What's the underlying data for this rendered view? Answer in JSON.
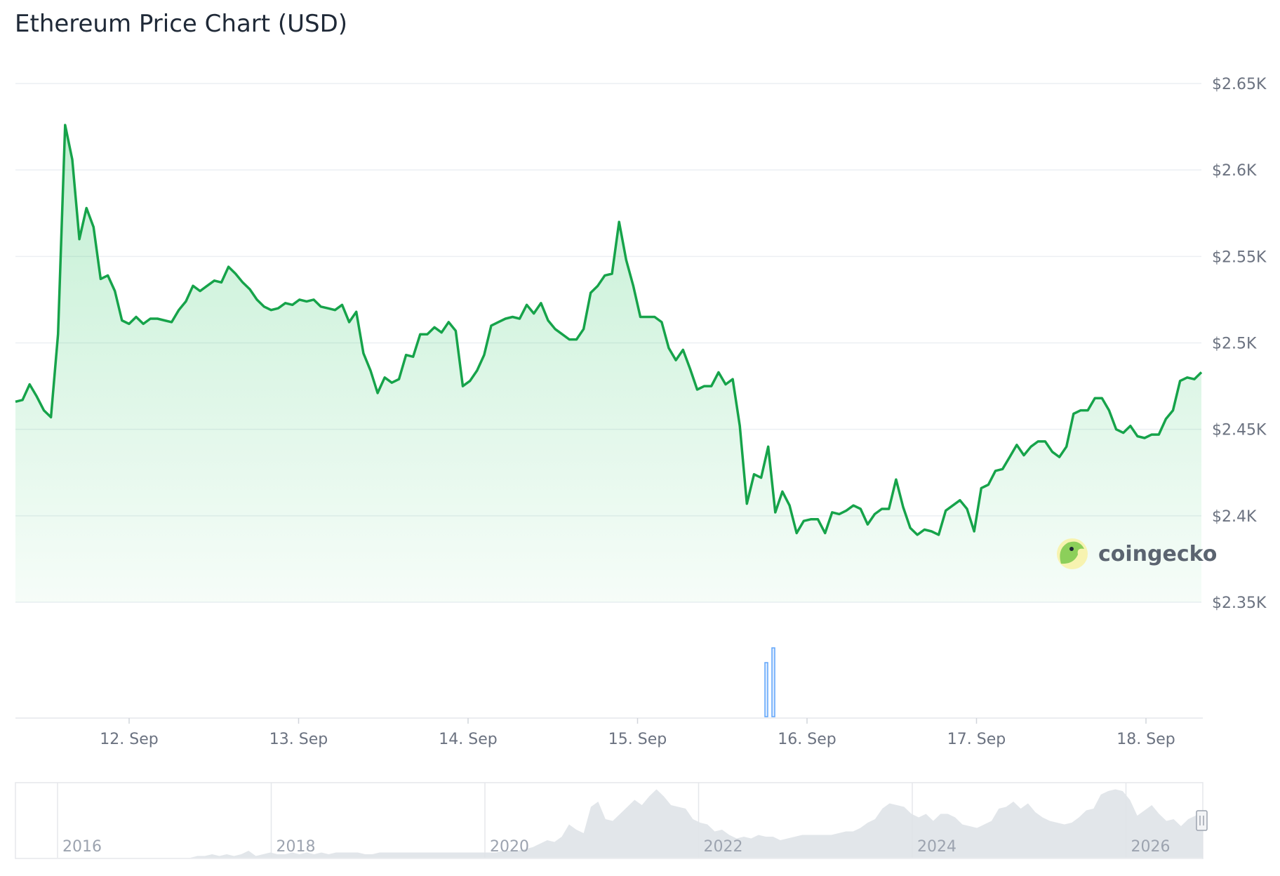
{
  "title": "Ethereum Price Chart (USD)",
  "watermark": "coingecko",
  "colors": {
    "line": "#16a34a",
    "area": "#22c55e",
    "volume": "#60a5fa",
    "grid": "#eceff3",
    "navigator": "#dfe3e8"
  },
  "chart_data": {
    "type": "line",
    "title": "Ethereum Price Chart (USD)",
    "ylim": [
      2350,
      2650
    ],
    "y_ticks": [
      "$2.65K",
      "$2.6K",
      "$2.55K",
      "$2.5K",
      "$2.45K",
      "$2.4K",
      "$2.35K"
    ],
    "x_tick_labels": [
      "12. Sep",
      "13. Sep",
      "14. Sep",
      "15. Sep",
      "16. Sep",
      "17. Sep",
      "18. Sep"
    ],
    "grid": true,
    "series": [
      {
        "values": [
          2466,
          2467,
          2476,
          2469,
          2461,
          2457,
          2505,
          2626,
          2606,
          2560,
          2578,
          2567,
          2537,
          2539,
          2530,
          2513,
          2511,
          2515,
          2511,
          2514,
          2514,
          2513,
          2512,
          2519,
          2524,
          2533,
          2530,
          2533,
          2536,
          2535,
          2544,
          2540,
          2535,
          2531,
          2525,
          2521,
          2519,
          2520,
          2523,
          2522,
          2525,
          2524,
          2525,
          2521,
          2520,
          2519,
          2522,
          2512,
          2518,
          2494,
          2484,
          2471,
          2480,
          2477,
          2479,
          2493,
          2492,
          2505,
          2505,
          2509,
          2506,
          2512,
          2507,
          2475,
          2478,
          2484,
          2493,
          2510,
          2512,
          2514,
          2515,
          2514,
          2522,
          2517,
          2523,
          2513,
          2508,
          2505,
          2502,
          2502,
          2508,
          2529,
          2533,
          2539,
          2540,
          2570,
          2548,
          2533,
          2515,
          2515,
          2515,
          2512,
          2497,
          2490,
          2496,
          2485,
          2473,
          2475,
          2475,
          2483,
          2476,
          2479,
          2452,
          2407,
          2424,
          2422,
          2440,
          2402,
          2414,
          2406,
          2390,
          2397,
          2398,
          2398,
          2390,
          2402,
          2401,
          2403,
          2406,
          2404,
          2395,
          2401,
          2404,
          2404,
          2421,
          2405,
          2393,
          2389,
          2392,
          2391,
          2389,
          2403,
          2406,
          2409,
          2404,
          2391,
          2416,
          2418,
          2426,
          2427,
          2434,
          2441,
          2435,
          2440,
          2443,
          2443,
          2437,
          2434,
          2440,
          2459,
          2461,
          2461,
          2468,
          2468,
          2461,
          2450,
          2448,
          2452,
          2446,
          2445,
          2447,
          2447,
          2456,
          2461,
          2478,
          2480,
          2479,
          2483
        ]
      }
    ],
    "volume": {
      "values": [
        22,
        28
      ]
    },
    "navigator": {
      "labels": [
        "2016",
        "2018",
        "2020",
        "2022",
        "2024",
        "2026"
      ],
      "values": [
        0,
        0,
        0,
        0,
        0,
        0,
        0,
        0,
        0,
        0,
        0,
        0,
        0,
        0,
        0,
        0,
        0,
        0,
        0,
        0,
        0,
        0,
        0,
        0,
        0,
        1,
        1,
        2,
        1,
        2,
        1,
        2,
        4,
        1,
        2,
        3,
        2,
        2,
        3,
        2,
        3,
        2,
        3,
        2,
        3,
        3,
        3,
        3,
        2,
        2,
        3,
        3,
        3,
        3,
        3,
        3,
        3,
        3,
        3,
        3,
        3,
        3,
        3,
        3,
        3,
        3,
        3,
        4,
        4,
        4,
        5,
        6,
        8,
        10,
        9,
        12,
        19,
        16,
        14,
        29,
        32,
        22,
        21,
        25,
        29,
        33,
        30,
        35,
        39,
        35,
        30,
        29,
        28,
        22,
        20,
        19,
        15,
        16,
        13,
        11,
        12,
        11,
        13,
        12,
        12,
        10,
        11,
        12,
        13,
        13,
        13,
        13,
        13,
        14,
        15,
        15,
        17,
        20,
        22,
        28,
        31,
        30,
        29,
        25,
        23,
        25,
        21,
        25,
        25,
        23,
        19,
        18,
        17,
        19,
        21,
        28,
        29,
        32,
        28,
        31,
        26,
        23,
        21,
        20,
        19,
        20,
        23,
        27,
        28,
        36,
        38,
        39,
        38,
        33,
        24,
        27,
        30,
        25,
        21,
        22,
        18,
        22,
        24,
        27
      ]
    }
  }
}
